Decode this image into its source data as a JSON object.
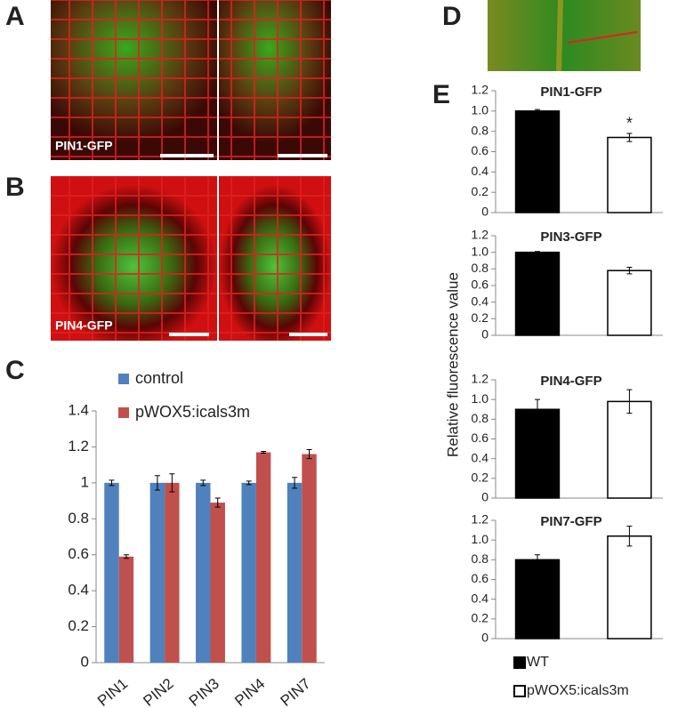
{
  "panel_labels": [
    "A",
    "B",
    "C",
    "D",
    "E"
  ],
  "image_labels": [
    "PIN1-GFP",
    "PIN4-GFP"
  ],
  "shared_y_label": "Relative fluorescence value",
  "chart_data": [
    {
      "type": "bar",
      "categories": [
        "PIN1",
        "PIN2",
        "PIN3",
        "PIN4",
        "PIN7"
      ],
      "series": [
        {
          "name": "control",
          "color": "#4f81bd",
          "values": [
            1,
            1,
            1,
            1,
            1
          ],
          "errors": [
            0.015,
            0.04,
            0.015,
            0.01,
            0.03
          ]
        },
        {
          "name": "pWOX5:icals3m",
          "color": "#c0504d",
          "values": [
            0.59,
            1.0,
            0.89,
            1.17,
            1.16
          ],
          "errors": [
            0.01,
            0.05,
            0.025,
            0.005,
            0.025
          ]
        }
      ],
      "ylim": [
        0,
        1.4
      ],
      "yticks": [
        0,
        0.2,
        0.4,
        0.6,
        0.8,
        1,
        1.2,
        1.4
      ],
      "grid": false
    },
    {
      "type": "bar",
      "title": "PIN1-GFP",
      "annotation": "*",
      "series": [
        {
          "color": "#000000",
          "values": [
            1.0
          ],
          "errors": [
            0.015
          ]
        },
        {
          "color": "#ffffff",
          "values": [
            0.74
          ],
          "errors": [
            0.04
          ]
        }
      ],
      "ylim": [
        0,
        1.2
      ],
      "yticks": [
        0,
        0.2,
        0.4,
        0.6,
        0.8,
        {
          "value": 1,
          "label": "1.0"
        },
        1.2
      ]
    },
    {
      "type": "bar",
      "title": "PIN3-GFP",
      "series": [
        {
          "color": "#000000",
          "values": [
            1.0
          ],
          "errors": [
            0.01
          ]
        },
        {
          "color": "#ffffff",
          "values": [
            0.78
          ],
          "errors": [
            0.04
          ]
        }
      ],
      "ylim": [
        0,
        1.2
      ],
      "yticks": [
        0,
        0.2,
        0.4,
        0.6,
        0.8,
        {
          "value": 1,
          "label": "1.0"
        },
        1.2
      ]
    },
    {
      "type": "bar",
      "title": "PIN4-GFP",
      "series": [
        {
          "color": "#000000",
          "values": [
            0.9
          ],
          "errors": [
            0.1
          ]
        },
        {
          "color": "#ffffff",
          "values": [
            0.98
          ],
          "errors": [
            0.12
          ]
        }
      ],
      "ylim": [
        0,
        1.2
      ],
      "yticks": [
        0,
        0.2,
        0.4,
        0.6,
        0.8,
        {
          "value": 1,
          "label": "1.0"
        },
        1.2
      ]
    },
    {
      "type": "bar",
      "title": "PIN7-GFP",
      "series": [
        {
          "name": "WT",
          "color": "#000000",
          "values": [
            0.8
          ],
          "errors": [
            0.05
          ]
        },
        {
          "name": "pWOX5:icals3m",
          "color": "#ffffff",
          "values": [
            1.04
          ],
          "errors": [
            0.1
          ]
        }
      ],
      "ylim": [
        0,
        1.2
      ],
      "yticks": [
        0,
        0.2,
        0.4,
        0.6,
        0.8,
        {
          "value": 1,
          "label": "1.0"
        },
        1.2
      ]
    }
  ]
}
